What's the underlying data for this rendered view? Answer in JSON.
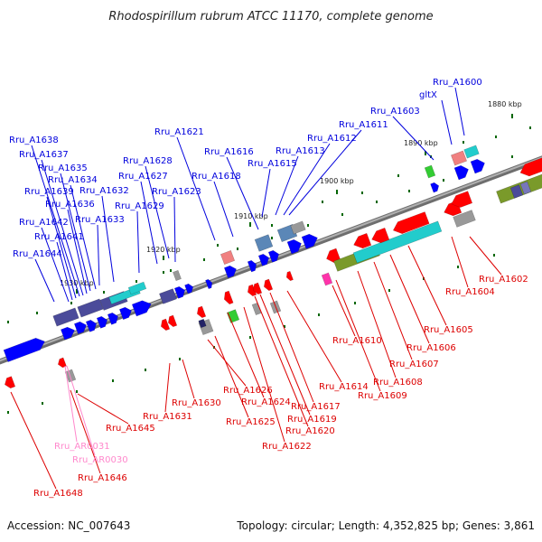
{
  "title": "Rhodospirillum rubrum ATCC 11170, complete genome",
  "footer": {
    "accession": "Accession: NC_007643",
    "summary": "Topology: circular; Length: 4,352,825 bp; Genes: 3,861"
  },
  "colors": {
    "forward_label": "#0000dd",
    "reverse_label": "#dd0000",
    "rna_label": "#ff88cc",
    "backbone": "#8c8c8c",
    "forward_arrow": "#0000ff",
    "reverse_arrow": "#ff0000",
    "tick": "#006600"
  },
  "ticks": [
    {
      "label": "1880 kbp"
    },
    {
      "label": "1890 kbp"
    },
    {
      "label": "1900 kbp"
    },
    {
      "label": "1910 kbp"
    },
    {
      "label": "1920 kbp"
    },
    {
      "label": "1930 kbp"
    }
  ],
  "forward_genes": [
    "Rru_A1600",
    "gltX",
    "Rru_A1603",
    "Rru_A1611",
    "Rru_A1612",
    "Rru_A1613",
    "Rru_A1615",
    "Rru_A1616",
    "Rru_A1618",
    "Rru_A1621",
    "Rru_A1623",
    "Rru_A1627",
    "Rru_A1628",
    "Rru_A1629",
    "Rru_A1632",
    "Rru_A1633",
    "Rru_A1634",
    "Rru_A1635",
    "Rru_A1636",
    "Rru_A1637",
    "Rru_A1638",
    "Rru_A1639",
    "Rru_A1641",
    "Rru_A1642",
    "Rru_A1644"
  ],
  "reverse_genes": [
    "Rru_A1602",
    "Rru_A1604",
    "Rru_A1605",
    "Rru_A1606",
    "Rru_A1607",
    "Rru_A1608",
    "Rru_A1609",
    "Rru_A1610",
    "Rru_A1614",
    "Rru_A1617",
    "Rru_A1619",
    "Rru_A1620",
    "Rru_A1622",
    "Rru_A1624",
    "Rru_A1625",
    "Rru_A1626",
    "Rru_A1630",
    "Rru_A1631",
    "Rru_A1645",
    "Rru_A1646",
    "Rru_A1648"
  ],
  "rna_genes": [
    "Rru_AR0031",
    "Rru_AR0030"
  ]
}
